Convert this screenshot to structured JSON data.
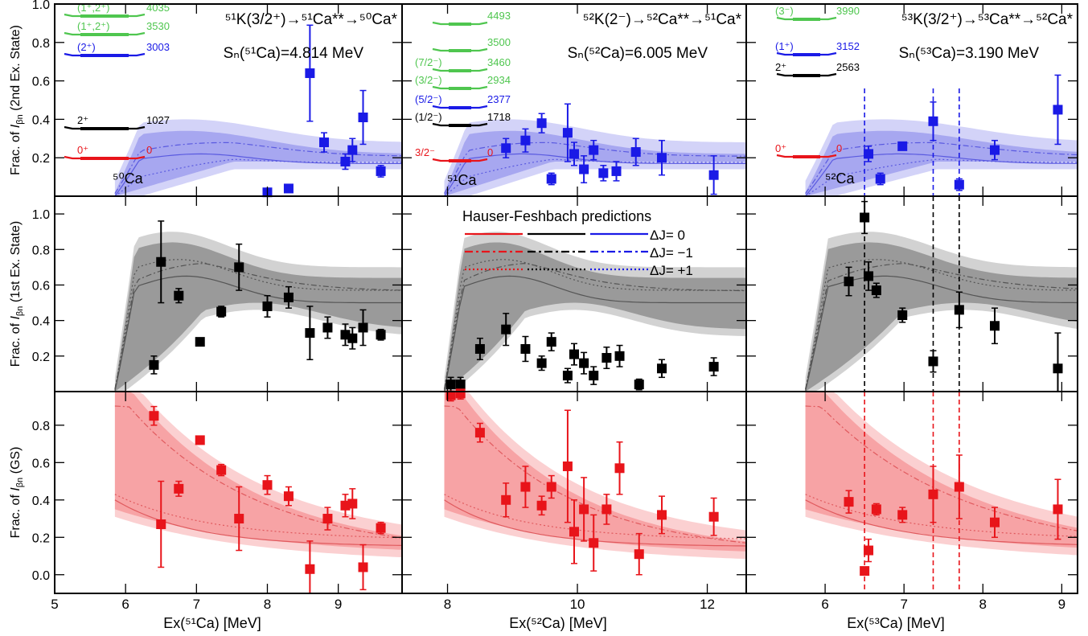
{
  "chart_data": {
    "type": "scatter",
    "legend": {
      "title": "Hauser-Feshbach predictions",
      "entries": [
        {
          "style": "solid",
          "label": "ΔJ= 0"
        },
        {
          "style": "dashdot",
          "label": "ΔJ= −1"
        },
        {
          "style": "dotted",
          "label": "ΔJ= +1"
        }
      ],
      "placement": "middle-center"
    },
    "colors": {
      "gs": "#e8141a",
      "first": "#000000",
      "second": "#1a1ae6",
      "green": "#4fc64f",
      "gs_band": "#f7a3a5",
      "gs_band_light": "#fbd0d1",
      "first_band": "#9a9a9a",
      "first_band_light": "#d2d2d2",
      "second_band": "#a7a7f0",
      "second_band_light": "#d3d3f8"
    },
    "rows": [
      {
        "ylabel_pre": "Frac. of ",
        "ylabel_sym": "I",
        "ylabel_sub": "βn",
        "ylabel_post": " (2nd Ex. State)",
        "ylim": [
          0,
          1.0
        ],
        "yticks": [
          "0.2",
          "0.4",
          "0.6",
          "0.8",
          "1.0"
        ]
      },
      {
        "ylabel_pre": "Frac. of ",
        "ylabel_sym": "I",
        "ylabel_sub": "βn",
        "ylabel_post": " (1st Ex. State)",
        "ylim": [
          0,
          1.1
        ],
        "yticks": [
          "0.2",
          "0.4",
          "0.6",
          "0.8",
          "1.0"
        ]
      },
      {
        "ylabel_pre": "Frac. of ",
        "ylabel_sym": "I",
        "ylabel_sub": "βn",
        "ylabel_post": " (GS)",
        "ylim": [
          -0.1,
          0.98
        ],
        "yticks": [
          "0.0",
          "0.2",
          "0.4",
          "0.6",
          "0.8"
        ]
      }
    ],
    "columns": [
      {
        "title": "⁵¹K(3/2⁺)→⁵¹Ca**→⁵⁰Ca*",
        "sn": "Sₙ(⁵¹Ca)=4.814 MeV",
        "xlabel": "Ex(⁵¹Ca) [MeV]",
        "xlim": [
          5,
          9.9
        ],
        "xticks": [
          "5",
          "6",
          "7",
          "8",
          "9"
        ],
        "xtick_values": [
          5,
          6,
          7,
          8,
          9
        ],
        "band_start": 5.85,
        "levels": [
          {
            "jp": "(1⁺,2⁺)",
            "e": "4035",
            "color": "green"
          },
          {
            "jp": "(1⁺,2⁺)",
            "e": "3530",
            "color": "green"
          },
          {
            "jp": "(2⁺)",
            "e": "3003",
            "color": "second"
          },
          {
            "jp": "2⁺",
            "e": "1027",
            "color": "first"
          },
          {
            "jp": "0⁺",
            "e": "0",
            "color": "gs"
          }
        ],
        "nucleus": "⁵⁰Ca",
        "vlines": [],
        "second": {
          "x": [
            8.0,
            8.3,
            8.6,
            8.8,
            9.1,
            9.2,
            9.35,
            9.6
          ],
          "y": [
            0.02,
            0.04,
            0.64,
            0.28,
            0.18,
            0.24,
            0.41,
            0.13
          ],
          "err": [
            0.02,
            0.02,
            0.25,
            0.05,
            0.04,
            0.06,
            0.14,
            0.03
          ]
        },
        "first": {
          "x": [
            6.4,
            6.5,
            6.75,
            7.05,
            7.35,
            7.6,
            8.0,
            8.3,
            8.6,
            8.85,
            9.1,
            9.2,
            9.35,
            9.6
          ],
          "y": [
            0.15,
            0.73,
            0.54,
            0.28,
            0.45,
            0.7,
            0.48,
            0.53,
            0.33,
            0.36,
            0.32,
            0.3,
            0.36,
            0.32
          ],
          "err": [
            0.05,
            0.23,
            0.04,
            0.02,
            0.03,
            0.13,
            0.06,
            0.06,
            0.15,
            0.06,
            0.06,
            0.06,
            0.1,
            0.03
          ]
        },
        "gs": {
          "x": [
            6.4,
            6.5,
            6.75,
            7.05,
            7.35,
            7.6,
            8.0,
            8.3,
            8.6,
            8.85,
            9.1,
            9.2,
            9.35,
            9.6
          ],
          "y": [
            0.85,
            0.27,
            0.46,
            0.72,
            0.56,
            0.3,
            0.48,
            0.42,
            0.03,
            0.3,
            0.37,
            0.38,
            0.04,
            0.25
          ],
          "err": [
            0.05,
            0.23,
            0.04,
            0.02,
            0.03,
            0.17,
            0.05,
            0.05,
            0.15,
            0.06,
            0.06,
            0.08,
            0.12,
            0.03
          ]
        }
      },
      {
        "title": "⁵²K(2⁻)→⁵²Ca**→⁵¹Ca*",
        "sn": "Sₙ(⁵²Ca)=6.005 MeV",
        "xlabel": "Ex(⁵²Ca) [MeV]",
        "xlim": [
          7.3,
          12.6
        ],
        "xticks": [
          "8",
          "10",
          "12"
        ],
        "xtick_values": [
          8,
          10,
          12
        ],
        "band_start": 7.95,
        "levels": [
          {
            "jp": "",
            "e": "4493",
            "color": "green"
          },
          {
            "jp": "",
            "e": "3500",
            "color": "green"
          },
          {
            "jp": "(7/2⁻)",
            "e": "3460",
            "color": "green"
          },
          {
            "jp": "(3/2⁻)",
            "e": "2934",
            "color": "green"
          },
          {
            "jp": "(5/2⁻)",
            "e": "2377",
            "color": "second"
          },
          {
            "jp": "(1/2⁻)",
            "e": "1718",
            "color": "first"
          },
          {
            "jp": "3/2⁻",
            "e": "0",
            "color": "gs"
          }
        ],
        "nucleus": "⁵¹Ca",
        "vlines": [],
        "second": {
          "x": [
            8.9,
            9.2,
            9.45,
            9.6,
            9.85,
            9.95,
            10.1,
            10.25,
            10.4,
            10.6,
            10.9,
            11.3,
            12.1
          ],
          "y": [
            0.25,
            0.29,
            0.38,
            0.09,
            0.33,
            0.22,
            0.14,
            0.24,
            0.12,
            0.13,
            0.23,
            0.2,
            0.11
          ],
          "err": [
            0.05,
            0.06,
            0.05,
            0.03,
            0.15,
            0.06,
            0.07,
            0.05,
            0.04,
            0.05,
            0.07,
            0.09,
            0.1
          ]
        },
        "first": {
          "x": [
            8.05,
            8.2,
            8.5,
            8.9,
            9.2,
            9.45,
            9.6,
            9.85,
            9.95,
            10.1,
            10.25,
            10.45,
            10.65,
            10.95,
            11.3,
            12.1
          ],
          "y": [
            0.04,
            0.04,
            0.24,
            0.35,
            0.24,
            0.16,
            0.28,
            0.09,
            0.21,
            0.16,
            0.09,
            0.19,
            0.2,
            0.04,
            0.13,
            0.14
          ],
          "err": [
            0.04,
            0.04,
            0.06,
            0.09,
            0.07,
            0.04,
            0.05,
            0.04,
            0.06,
            0.06,
            0.05,
            0.06,
            0.06,
            0.03,
            0.05,
            0.05
          ]
        },
        "gs": {
          "x": [
            8.05,
            8.2,
            8.5,
            8.9,
            9.2,
            9.45,
            9.6,
            9.85,
            9.95,
            10.1,
            10.25,
            10.45,
            10.65,
            10.95,
            11.3,
            12.1
          ],
          "y": [
            0.96,
            0.97,
            0.76,
            0.4,
            0.47,
            0.37,
            0.47,
            0.58,
            0.23,
            0.35,
            0.17,
            0.35,
            0.57,
            0.11,
            0.32,
            0.31
          ],
          "err": [
            0.03,
            0.03,
            0.05,
            0.09,
            0.11,
            0.05,
            0.06,
            0.3,
            0.17,
            0.17,
            0.15,
            0.08,
            0.14,
            0.11,
            0.1,
            0.1
          ]
        }
      },
      {
        "title": "⁵³K(3/2⁺)→⁵³Ca**→⁵²Ca*",
        "sn": "Sₙ(⁵³Ca)=3.190 MeV",
        "xlabel": "Ex(⁵³Ca) [MeV]",
        "xlim": [
          5.0,
          9.2
        ],
        "xticks": [
          "6",
          "7",
          "8",
          "9"
        ],
        "xtick_values": [
          6,
          7,
          8,
          9
        ],
        "band_start": 5.75,
        "levels": [
          {
            "jp": "(3⁻)",
            "e": "3990",
            "color": "green"
          },
          {
            "jp": "(1⁺)",
            "e": "3152",
            "color": "second"
          },
          {
            "jp": "2⁺",
            "e": "2563",
            "color": "first"
          },
          {
            "jp": "0⁺",
            "e": "0",
            "color": "gs"
          }
        ],
        "nucleus": "⁵²Ca",
        "vlines": [
          6.5,
          7.37,
          7.7
        ],
        "second": {
          "x": [
            6.55,
            6.7,
            6.98,
            7.37,
            7.7,
            8.15,
            8.95
          ],
          "y": [
            0.22,
            0.09,
            0.26,
            0.39,
            0.06,
            0.24,
            0.45
          ],
          "err": [
            0.04,
            0.03,
            0.02,
            0.1,
            0.03,
            0.05,
            0.18
          ]
        },
        "first": {
          "x": [
            6.3,
            6.5,
            6.55,
            6.65,
            6.98,
            7.37,
            7.7,
            8.15,
            8.95
          ],
          "y": [
            0.62,
            0.98,
            0.65,
            0.57,
            0.43,
            0.17,
            0.46,
            0.37,
            0.13
          ],
          "err": [
            0.08,
            0.09,
            0.08,
            0.04,
            0.04,
            0.06,
            0.1,
            0.1,
            0.2
          ]
        },
        "gs": {
          "x": [
            6.3,
            6.5,
            6.55,
            6.65,
            6.98,
            7.37,
            7.7,
            8.15,
            8.95
          ],
          "y": [
            0.39,
            0.02,
            0.13,
            0.35,
            0.32,
            0.43,
            0.47,
            0.28,
            0.35
          ],
          "err": [
            0.06,
            0.02,
            0.06,
            0.03,
            0.04,
            0.15,
            0.17,
            0.08,
            0.16
          ]
        }
      }
    ]
  }
}
